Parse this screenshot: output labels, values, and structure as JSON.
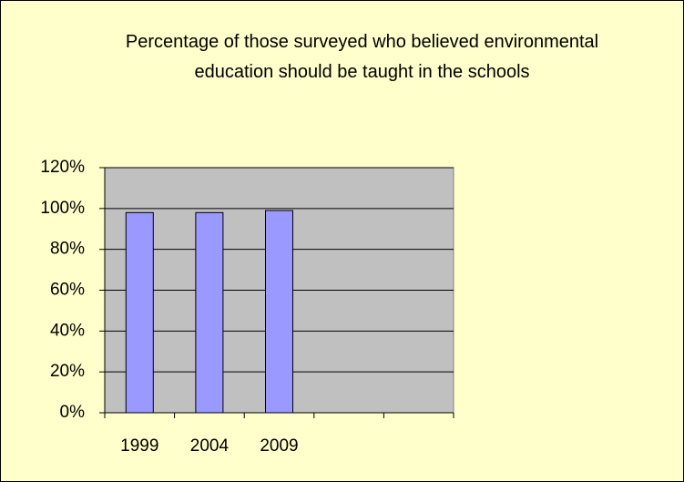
{
  "chart_data": {
    "type": "bar",
    "title": "Percentage of those surveyed who believed environmental education should be taught in the schools",
    "categories": [
      "1999",
      "2004",
      "2009",
      null,
      null
    ],
    "values": [
      98,
      98,
      99,
      null,
      null
    ],
    "color": "#9999ff",
    "ylim": [
      0,
      120
    ],
    "yticks": [
      {
        "value": 0,
        "label": "0%"
      },
      {
        "value": 20,
        "label": "20%"
      },
      {
        "value": 40,
        "label": "40%"
      },
      {
        "value": 60,
        "label": "60%"
      },
      {
        "value": 80,
        "label": "80%"
      },
      {
        "value": 100,
        "label": "100%"
      },
      {
        "value": 120,
        "label": "120%"
      }
    ],
    "grid": true
  }
}
